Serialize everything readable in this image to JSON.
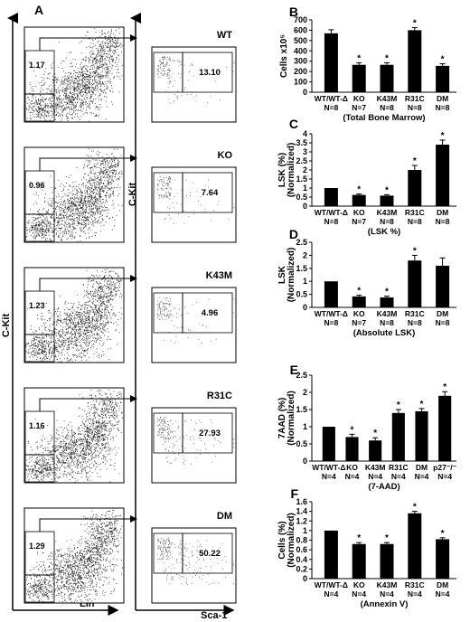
{
  "panel_labels": {
    "A": "A",
    "B": "B",
    "C": "C",
    "D": "D",
    "E": "E",
    "F": "F"
  },
  "flow": {
    "left_y_axis": "C-Kit",
    "left_x_axis": "Lin",
    "right_y_axis": "C-Kit",
    "right_x_axis": "Sca-1",
    "rows": [
      {
        "genotype": "WT",
        "lin_gate": "1.17",
        "lsk": "13.10"
      },
      {
        "genotype": "KO",
        "lin_gate": "0.96",
        "lsk": "7.64"
      },
      {
        "genotype": "K43M",
        "lin_gate": "1.23",
        "lsk": "4.96"
      },
      {
        "genotype": "R31C",
        "lin_gate": "1.16",
        "lsk": "27.93"
      },
      {
        "genotype": "DM",
        "lin_gate": "1.29",
        "lsk": "50.22"
      }
    ]
  },
  "chart_data": [
    {
      "type": "bar",
      "panel": "B",
      "ylabel": "Cells x10⁵",
      "xlabel": "(Total Bone Marrow)",
      "ylim": [
        0,
        700
      ],
      "yticks": [
        "0",
        "100",
        "200",
        "300",
        "400",
        "500",
        "600",
        "700"
      ],
      "categories": [
        "WT/WT-Δ",
        "KO",
        "K43M",
        "R31C",
        "DM"
      ],
      "n_labels": [
        "N=8",
        "N=7",
        "N=8",
        "N=8",
        "N=8"
      ],
      "values": [
        570,
        265,
        265,
        600,
        255
      ],
      "errors": [
        35,
        20,
        20,
        25,
        20
      ],
      "sig": [
        "",
        "*",
        "*",
        "*",
        "*"
      ]
    },
    {
      "type": "bar",
      "panel": "C",
      "ylabel": "LSK (%)",
      "ylabel2": "(Normalized)",
      "xlabel": "(LSK %)",
      "ylim": [
        0,
        4
      ],
      "yticks": [
        "0",
        "0.5",
        "1",
        "1.5",
        "2",
        "2.5",
        "3",
        "3.5",
        "4"
      ],
      "categories": [
        "WT/WT-Δ",
        "KO",
        "K43M",
        "R31C",
        "DM"
      ],
      "n_labels": [
        "N=8",
        "N=7",
        "N=8",
        "N=8",
        "N=8"
      ],
      "values": [
        1,
        0.62,
        0.58,
        2.0,
        3.4
      ],
      "errors": [
        0,
        0.05,
        0.05,
        0.25,
        0.25
      ],
      "sig": [
        "",
        "*",
        "*",
        "*",
        "*"
      ]
    },
    {
      "type": "bar",
      "panel": "D",
      "ylabel": "LSK",
      "ylabel2": "(Normalized)",
      "xlabel": "(Absolute LSK)",
      "ylim": [
        0,
        2.5
      ],
      "yticks": [
        "0",
        "0.5",
        "1",
        "1.5",
        "2",
        "2.5"
      ],
      "categories": [
        "WT/WT-Δ",
        "KO",
        "K43M",
        "R31C",
        "DM"
      ],
      "n_labels": [
        "N=8",
        "N=7",
        "N=8",
        "N=8",
        "N=8"
      ],
      "values": [
        1,
        0.42,
        0.38,
        1.8,
        1.6
      ],
      "errors": [
        0,
        0.05,
        0.05,
        0.2,
        0.3
      ],
      "sig": [
        "",
        "*",
        "*",
        "*",
        ""
      ]
    },
    {
      "type": "bar",
      "panel": "E",
      "ylabel": "7AAD (%)",
      "ylabel2": "(Normalized)",
      "xlabel": "(7-AAD)",
      "ylim": [
        0,
        2.5
      ],
      "yticks": [
        "0",
        "0.5",
        "1",
        "1.5",
        "2",
        "2.5"
      ],
      "categories": [
        "WT/WT-Δ",
        "KO",
        "K43M",
        "R31C",
        "DM",
        "p27⁻/⁻"
      ],
      "n_labels": [
        "N=4",
        "N=4",
        "N=4",
        "N=4",
        "N=4",
        "N=4"
      ],
      "values": [
        1,
        0.7,
        0.6,
        1.4,
        1.45,
        1.9
      ],
      "errors": [
        0,
        0.08,
        0.08,
        0.1,
        0.08,
        0.12
      ],
      "sig": [
        "",
        "*",
        "*",
        "*",
        "*",
        "*"
      ]
    },
    {
      "type": "bar",
      "panel": "F",
      "ylabel": "Cells (%)",
      "ylabel2": "(Normalized)",
      "xlabel": "(Annexin V)",
      "ylim": [
        0,
        1.6
      ],
      "yticks": [
        "0",
        "0.2",
        "0.4",
        "0.6",
        "0.8",
        "1",
        "1.2",
        "1.4",
        "1.6"
      ],
      "categories": [
        "WT/WT-Δ",
        "KO",
        "K43M",
        "R31C",
        "DM"
      ],
      "n_labels": [
        "N=4",
        "N=4",
        "N=4",
        "N=4",
        "N=4"
      ],
      "values": [
        1,
        0.72,
        0.72,
        1.36,
        0.82
      ],
      "errors": [
        0,
        0.03,
        0.03,
        0.04,
        0.03
      ],
      "sig": [
        "",
        "*",
        "*",
        "*",
        "*"
      ]
    }
  ]
}
